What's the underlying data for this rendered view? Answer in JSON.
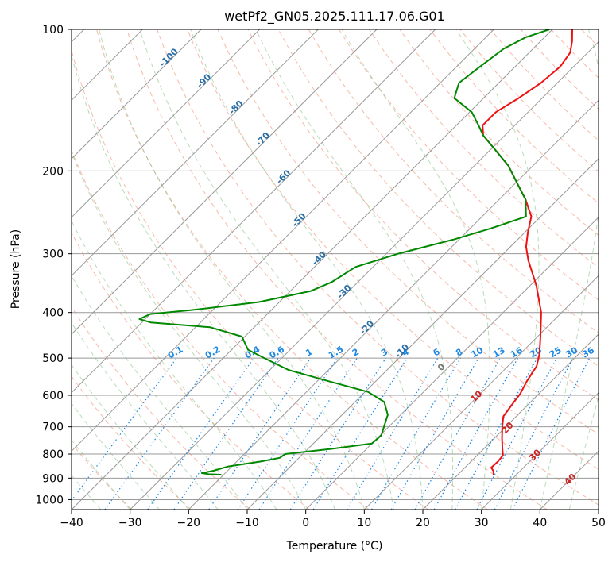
{
  "chart_data": {
    "type": "line",
    "subtype": "skew-T log-P diagram",
    "title": "wetPf2_GN05.2025.111.17.06.G01",
    "xlabel": "Temperature (°C)",
    "ylabel": "Pressure (hPa)",
    "xlim": [
      -40,
      50
    ],
    "ylim": [
      1050,
      100
    ],
    "y_scale": "log",
    "grid": true,
    "x_ticks": [
      -40,
      -30,
      -20,
      -10,
      0,
      10,
      20,
      30,
      40,
      50
    ],
    "y_ticks": [
      100,
      200,
      300,
      400,
      500,
      600,
      700,
      800,
      900,
      1000
    ],
    "background_lines": {
      "isotherm_color": "#999999",
      "isotherm_step": 10,
      "dry_adiabat_color": "#f08060",
      "dry_adiabat_labels": [
        -100,
        -90,
        -80,
        -70,
        -60,
        -50,
        -40,
        -30,
        -20,
        -10
      ],
      "moist_adiabat_color": "#7fbf7f",
      "moist_adiabat_labels": [
        0,
        10,
        20,
        30,
        40
      ],
      "mixing_ratio_color": "#1e88e5",
      "mixing_ratio_labels": [
        0.1,
        0.2,
        0.4,
        0.6,
        1,
        1.5,
        2,
        3,
        4,
        6,
        8,
        10,
        13,
        16,
        20,
        25,
        30,
        36
      ]
    },
    "series": [
      {
        "kind": "temperature",
        "color": "#ee1111",
        "points": [
          {
            "p": 885,
            "t": 26.1
          },
          {
            "p": 870,
            "t": 25.5
          },
          {
            "p": 855,
            "t": 24.5
          },
          {
            "p": 830,
            "t": 24.6
          },
          {
            "p": 805,
            "t": 24.4
          },
          {
            "p": 780,
            "t": 23.2
          },
          {
            "p": 740,
            "t": 21.3
          },
          {
            "p": 700,
            "t": 19.4
          },
          {
            "p": 665,
            "t": 17.8
          },
          {
            "p": 630,
            "t": 17.3
          },
          {
            "p": 595,
            "t": 16.8
          },
          {
            "p": 560,
            "t": 15.8
          },
          {
            "p": 520,
            "t": 14.9
          },
          {
            "p": 490,
            "t": 13.3
          },
          {
            "p": 450,
            "t": 10.5
          },
          {
            "p": 400,
            "t": 6.5
          },
          {
            "p": 350,
            "t": 1.0
          },
          {
            "p": 310,
            "t": -4.6
          },
          {
            "p": 290,
            "t": -7.3
          },
          {
            "p": 270,
            "t": -9.5
          },
          {
            "p": 250,
            "t": -11.6
          },
          {
            "p": 230,
            "t": -15.5
          },
          {
            "p": 210,
            "t": -20.3
          },
          {
            "p": 195,
            "t": -24.2
          },
          {
            "p": 180,
            "t": -29.3
          },
          {
            "p": 168,
            "t": -33.7
          },
          {
            "p": 160,
            "t": -35.5
          },
          {
            "p": 150,
            "t": -35.5
          },
          {
            "p": 140,
            "t": -34.0
          },
          {
            "p": 130,
            "t": -32.8
          },
          {
            "p": 120,
            "t": -32.3
          },
          {
            "p": 112,
            "t": -33.0
          },
          {
            "p": 106,
            "t": -34.6
          },
          {
            "p": 100,
            "t": -36.6
          }
        ]
      },
      {
        "kind": "dewpoint",
        "color": "#008800",
        "points": [
          {
            "p": 885,
            "t": -20.4
          },
          {
            "p": 883,
            "t": -22.6
          },
          {
            "p": 878,
            "t": -24.0
          },
          {
            "p": 868,
            "t": -22.4
          },
          {
            "p": 850,
            "t": -20.6
          },
          {
            "p": 830,
            "t": -16.0
          },
          {
            "p": 815,
            "t": -13.3
          },
          {
            "p": 800,
            "t": -13.0
          },
          {
            "p": 780,
            "t": -6.0
          },
          {
            "p": 760,
            "t": 0.0
          },
          {
            "p": 730,
            "t": 0.2
          },
          {
            "p": 700,
            "t": -0.8
          },
          {
            "p": 660,
            "t": -2.2
          },
          {
            "p": 620,
            "t": -5.0
          },
          {
            "p": 590,
            "t": -9.5
          },
          {
            "p": 560,
            "t": -18.0
          },
          {
            "p": 530,
            "t": -26.8
          },
          {
            "p": 500,
            "t": -33.0
          },
          {
            "p": 480,
            "t": -37.2
          },
          {
            "p": 450,
            "t": -40.5
          },
          {
            "p": 430,
            "t": -47.5
          },
          {
            "p": 420,
            "t": -58.5
          },
          {
            "p": 413,
            "t": -61.0
          },
          {
            "p": 403,
            "t": -60.0
          },
          {
            "p": 395,
            "t": -53.5
          },
          {
            "p": 380,
            "t": -43.5
          },
          {
            "p": 360,
            "t": -36.5
          },
          {
            "p": 345,
            "t": -34.5
          },
          {
            "p": 320,
            "t": -33.0
          },
          {
            "p": 300,
            "t": -28.0
          },
          {
            "p": 280,
            "t": -21.0
          },
          {
            "p": 265,
            "t": -16.5
          },
          {
            "p": 250,
            "t": -12.5
          },
          {
            "p": 230,
            "t": -15.5
          },
          {
            "p": 210,
            "t": -20.3
          },
          {
            "p": 195,
            "t": -24.2
          },
          {
            "p": 180,
            "t": -29.3
          },
          {
            "p": 168,
            "t": -33.7
          },
          {
            "p": 160,
            "t": -36.2
          },
          {
            "p": 150,
            "t": -39.6
          },
          {
            "p": 140,
            "t": -45.0
          },
          {
            "p": 130,
            "t": -46.8
          },
          {
            "p": 120,
            "t": -46.0
          },
          {
            "p": 110,
            "t": -45.0
          },
          {
            "p": 104,
            "t": -43.2
          },
          {
            "p": 100,
            "t": -40.5
          }
        ]
      }
    ]
  }
}
